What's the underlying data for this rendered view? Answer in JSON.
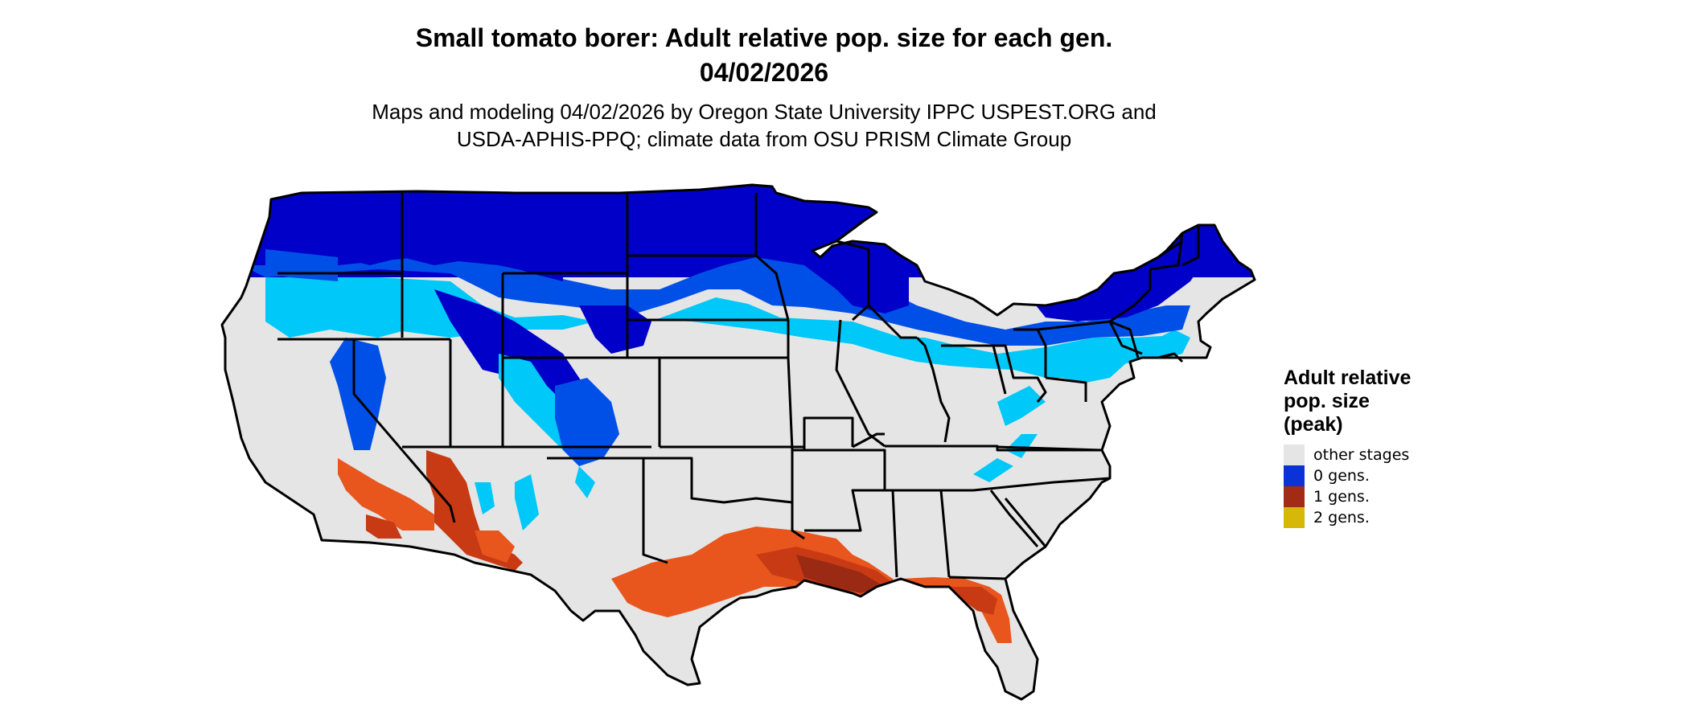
{
  "title": {
    "line1": "Small tomato borer: Adult relative pop. size for each gen.",
    "line2": "04/02/2026"
  },
  "subtitle": {
    "line1": "Maps and modeling 04/02/2026 by Oregon State University IPPC USPEST.ORG and",
    "line2": "USDA-APHIS-PPQ; climate data from OSU PRISM Climate Group"
  },
  "legend": {
    "title_line1": "Adult relative",
    "title_line2": "pop. size",
    "title_line3": "(peak)",
    "items": [
      {
        "label": "other stages",
        "color": "#e5e5e5"
      },
      {
        "label": "0 gens.",
        "color": "#0a32d6"
      },
      {
        "label": "1 gens.",
        "color": "#a32a14"
      },
      {
        "label": "2 gens.",
        "color": "#d6b80a"
      }
    ]
  },
  "map_colors": {
    "background_land": "#e5e5e5",
    "zero_gens_dark": "#0000c8",
    "zero_gens_mid": "#0050e8",
    "zero_gens_light": "#00c8f8",
    "one_gen_dark": "#9a2a14",
    "one_gen_mid": "#c83a14",
    "one_gen_light": "#e8561e",
    "state_borders": "#000000"
  }
}
